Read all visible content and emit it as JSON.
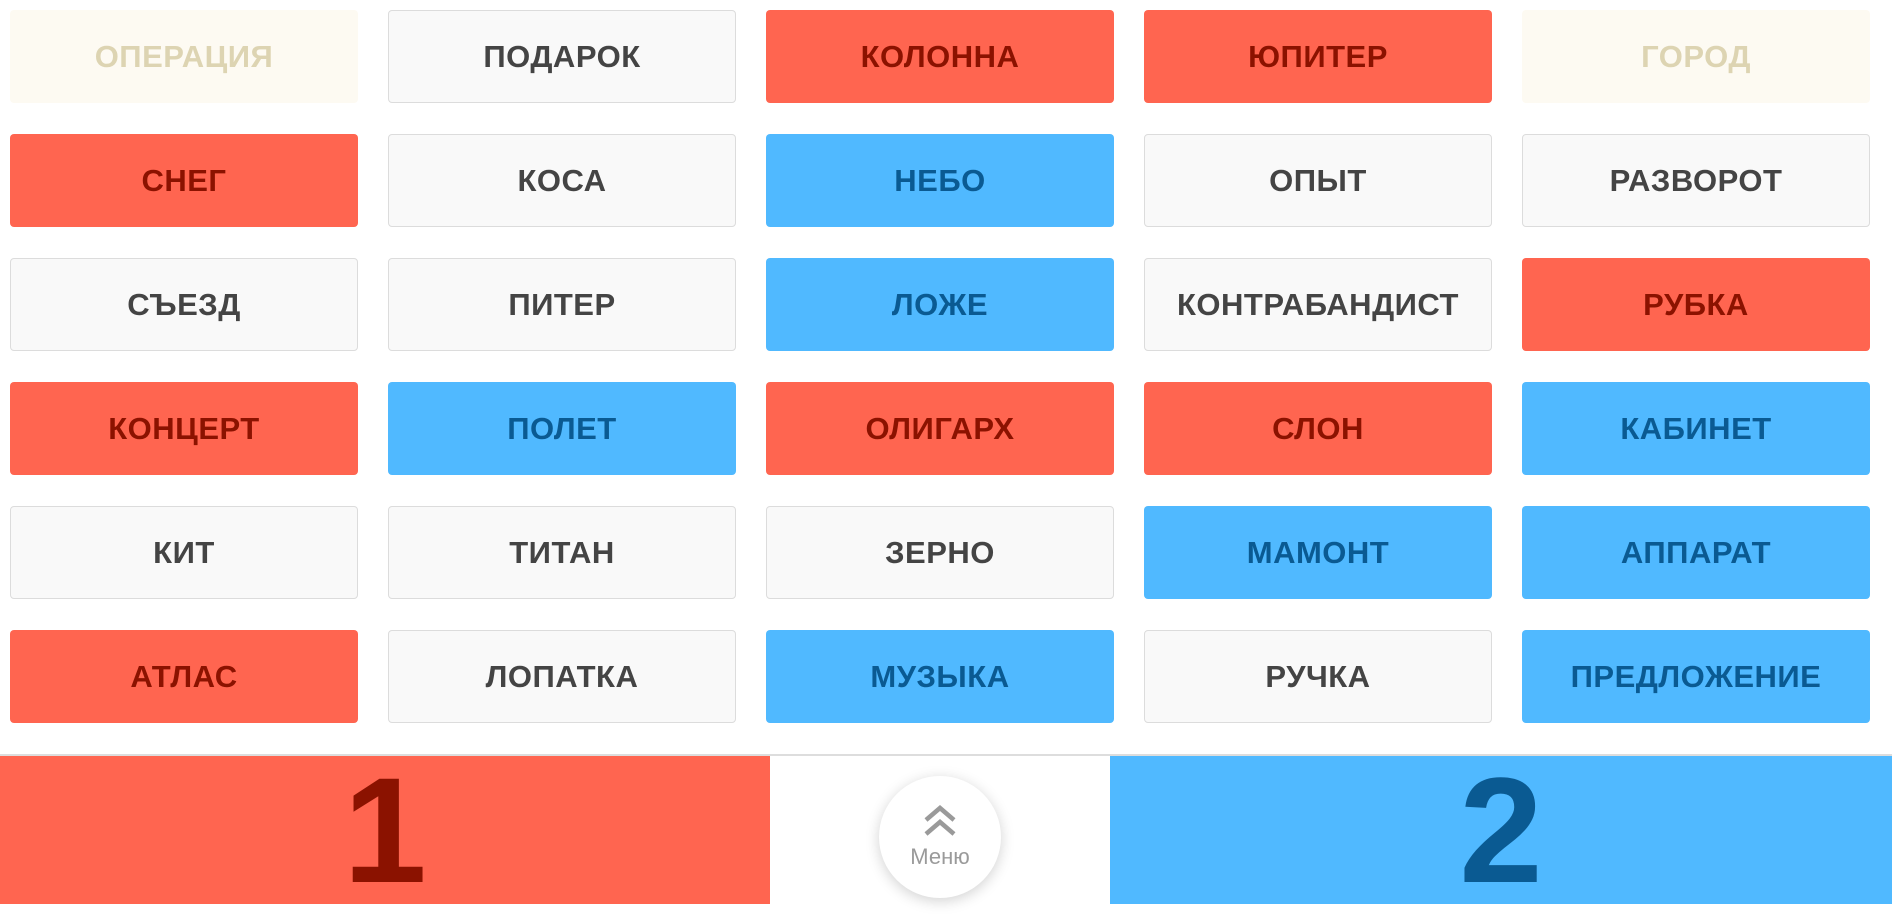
{
  "board": {
    "cards": [
      {
        "word": "ОПЕРАЦИЯ",
        "state": "revealed"
      },
      {
        "word": "ПОДАРОК",
        "state": "neutral"
      },
      {
        "word": "КОЛОННА",
        "state": "red"
      },
      {
        "word": "ЮПИТЕР",
        "state": "red"
      },
      {
        "word": "ГОРОД",
        "state": "revealed"
      },
      {
        "word": "СНЕГ",
        "state": "red"
      },
      {
        "word": "КОСА",
        "state": "neutral"
      },
      {
        "word": "НЕБО",
        "state": "blue"
      },
      {
        "word": "ОПЫТ",
        "state": "neutral"
      },
      {
        "word": "РАЗВОРОТ",
        "state": "neutral"
      },
      {
        "word": "СЪЕЗД",
        "state": "neutral"
      },
      {
        "word": "ПИТЕР",
        "state": "neutral"
      },
      {
        "word": "ЛОЖЕ",
        "state": "blue"
      },
      {
        "word": "КОНТРАБАНДИСТ",
        "state": "neutral"
      },
      {
        "word": "РУБКА",
        "state": "red"
      },
      {
        "word": "КОНЦЕРТ",
        "state": "red"
      },
      {
        "word": "ПОЛЕТ",
        "state": "blue"
      },
      {
        "word": "ОЛИГАРХ",
        "state": "red"
      },
      {
        "word": "СЛОН",
        "state": "red"
      },
      {
        "word": "КАБИНЕТ",
        "state": "blue"
      },
      {
        "word": "КИТ",
        "state": "neutral"
      },
      {
        "word": "ТИТАН",
        "state": "neutral"
      },
      {
        "word": "ЗЕРНО",
        "state": "neutral"
      },
      {
        "word": "МАМОНТ",
        "state": "blue"
      },
      {
        "word": "АППАРАТ",
        "state": "blue"
      },
      {
        "word": "АТЛАС",
        "state": "red"
      },
      {
        "word": "ЛОПАТКА",
        "state": "neutral"
      },
      {
        "word": "МУЗЫКА",
        "state": "blue"
      },
      {
        "word": "РУЧКА",
        "state": "neutral"
      },
      {
        "word": "ПРЕДЛОЖЕНИЕ",
        "state": "blue"
      }
    ]
  },
  "scores": {
    "red": "1",
    "blue": "2"
  },
  "menu": {
    "label": "Меню",
    "icon": "double-chevron-up-icon"
  },
  "colors": {
    "red": "#ff6550",
    "blue": "#50b9ff",
    "neutral": "#f9f9f9",
    "revealed": "#fdfaf2"
  }
}
